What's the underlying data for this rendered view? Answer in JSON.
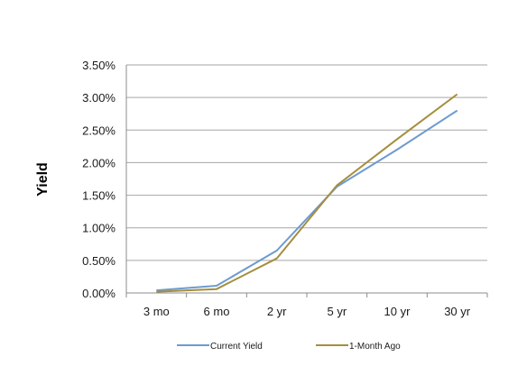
{
  "chart_data": {
    "type": "line",
    "title": "",
    "xlabel": "",
    "ylabel": "Yield",
    "categories": [
      "3 mo",
      "6 mo",
      "2 yr",
      "5 yr",
      "10 yr",
      "30 yr"
    ],
    "y_ticks": [
      "0.00%",
      "0.50%",
      "1.00%",
      "1.50%",
      "2.00%",
      "2.50%",
      "3.00%",
      "3.50%"
    ],
    "ylim": [
      0,
      3.5
    ],
    "grid": true,
    "legend_position": "bottom",
    "series": [
      {
        "name": "Current Yield",
        "color": "#6e9bd0",
        "values": [
          0.04,
          0.11,
          0.65,
          1.63,
          2.2,
          2.8
        ]
      },
      {
        "name": "1-Month Ago",
        "color": "#a58e3d",
        "values": [
          0.02,
          0.06,
          0.53,
          1.65,
          2.36,
          3.05
        ]
      }
    ]
  }
}
